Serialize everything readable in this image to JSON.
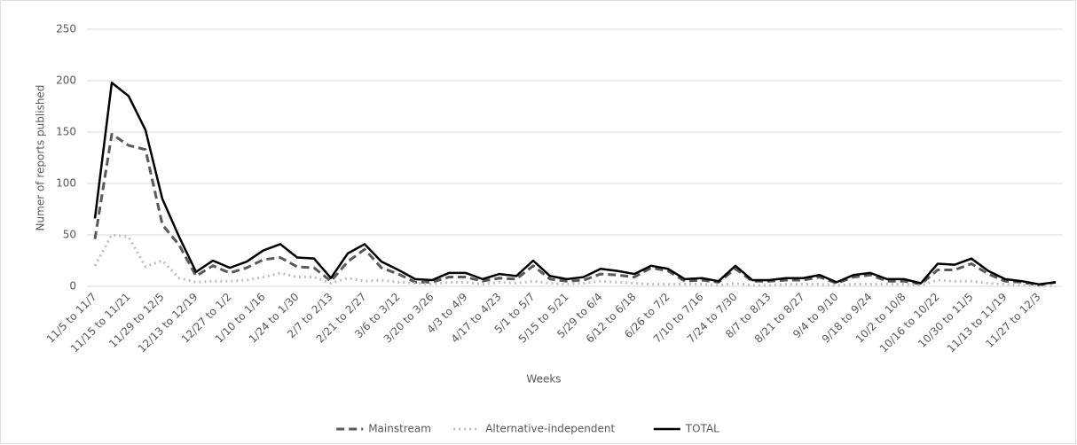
{
  "chart_data": {
    "type": "line",
    "x_label": "Weeks",
    "y_label": "Numer of reports published",
    "categories": [
      "11/5 to 11/7",
      null,
      "11/15 to 11/21",
      null,
      "11/29 to 12/5",
      null,
      "12/13 to 12/19",
      null,
      "12/27 to 1/2",
      null,
      "1/10 to 1/16",
      null,
      "1/24 to 1/30",
      null,
      "2/7 to 2/13",
      null,
      "2/21 to 2/27",
      null,
      "3/6 to 3/12",
      null,
      "3/20 to 3/26",
      null,
      "4/3 to 4/9",
      null,
      "4/17 to 4/23",
      null,
      "5/1 to 5/7",
      null,
      "5/15 to 5/21",
      null,
      "5/29 to 6/4",
      null,
      "6/12 to 6/18",
      null,
      "6/26 to 7/2",
      null,
      "7/10 to 7/16",
      null,
      "7/24 to 7/30",
      null,
      "8/7 to 8/13",
      null,
      "8/21 to 8/27",
      null,
      "9/4 to 9/10",
      null,
      "9/18 to 9/24",
      null,
      "10/2 to 10/8",
      null,
      "10/16 to 10/22",
      null,
      "10/30 to 11/5",
      null,
      "11/13 to 11/19",
      null,
      "11/27 to 12/3",
      null
    ],
    "series": [
      {
        "name": "Mainstream",
        "color": "#595959",
        "dash": "dashed",
        "values": [
          46,
          148,
          137,
          133,
          60,
          40,
          10,
          20,
          13,
          18,
          26,
          28,
          19,
          18,
          5,
          24,
          36,
          18,
          12,
          4,
          4,
          9,
          9,
          5,
          8,
          7,
          20,
          7,
          5,
          6,
          12,
          11,
          9,
          18,
          15,
          5,
          6,
          4,
          17,
          5,
          5,
          6,
          6,
          9,
          3,
          9,
          11,
          5,
          5,
          2,
          16,
          16,
          22,
          12,
          5,
          4,
          1,
          4
        ]
      },
      {
        "name": "Alternative-independent",
        "color": "#bfbfbf",
        "dash": "dotted",
        "values": [
          20,
          50,
          48,
          19,
          25,
          8,
          4,
          5,
          5,
          6,
          9,
          13,
          9,
          9,
          3,
          8,
          5,
          6,
          4,
          3,
          2,
          4,
          4,
          2,
          4,
          3,
          5,
          3,
          2,
          3,
          5,
          4,
          3,
          2,
          2,
          2,
          2,
          1,
          3,
          1,
          1,
          2,
          2,
          2,
          1,
          2,
          2,
          2,
          2,
          1,
          6,
          5,
          5,
          3,
          2,
          1,
          1,
          0
        ]
      },
      {
        "name": "TOTAL",
        "color": "#000000",
        "dash": "solid",
        "values": [
          66,
          198,
          185,
          152,
          85,
          48,
          14,
          25,
          18,
          24,
          35,
          41,
          28,
          27,
          8,
          32,
          41,
          24,
          16,
          7,
          6,
          13,
          13,
          7,
          12,
          10,
          25,
          10,
          7,
          9,
          17,
          15,
          12,
          20,
          17,
          7,
          8,
          5,
          20,
          6,
          6,
          8,
          8,
          11,
          4,
          11,
          13,
          7,
          7,
          3,
          22,
          21,
          27,
          15,
          7,
          5,
          2,
          4
        ]
      }
    ],
    "ylim": [
      0,
      250
    ],
    "yticks": [
      0,
      50,
      100,
      150,
      200,
      250
    ],
    "grid": true,
    "legend": "bottom"
  }
}
